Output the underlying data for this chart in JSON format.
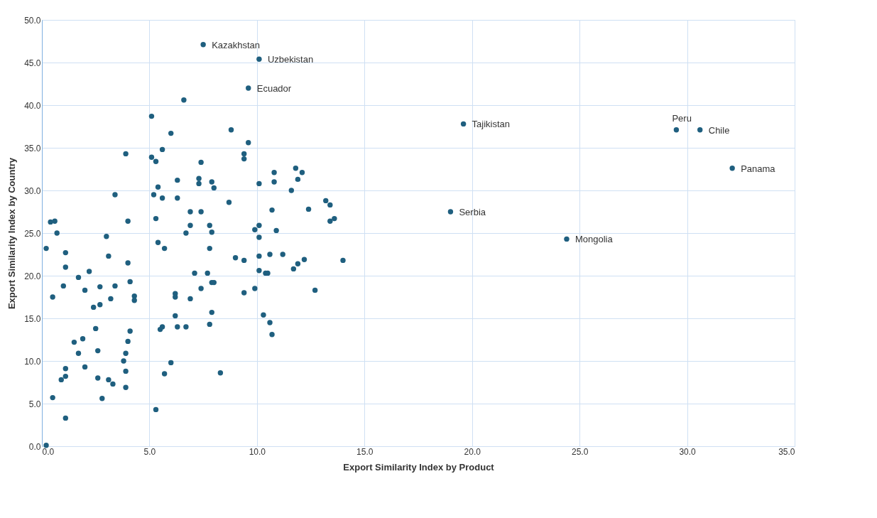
{
  "chart_data": {
    "type": "scatter",
    "xlabel": "Export Similarity Index by Product",
    "ylabel": "Export Similarity Index by Country",
    "xlim": [
      0,
      35
    ],
    "ylim": [
      0,
      50
    ],
    "xticks": [
      {
        "value": 0,
        "label": "0.0"
      },
      {
        "value": 5,
        "label": "5.0"
      },
      {
        "value": 10,
        "label": "10.0"
      },
      {
        "value": 15,
        "label": "15.0"
      },
      {
        "value": 20,
        "label": "20.0"
      },
      {
        "value": 25,
        "label": "25.0"
      },
      {
        "value": 30,
        "label": "30.0"
      },
      {
        "value": 35,
        "label": "35.0"
      }
    ],
    "yticks": [
      {
        "value": 0,
        "label": "0.0"
      },
      {
        "value": 5,
        "label": "5.0"
      },
      {
        "value": 10,
        "label": "10.0"
      },
      {
        "value": 15,
        "label": "15.0"
      },
      {
        "value": 20,
        "label": "20.0"
      },
      {
        "value": 25,
        "label": "25.0"
      },
      {
        "value": 30,
        "label": "30.0"
      },
      {
        "value": 35,
        "label": "35.0"
      },
      {
        "value": 40,
        "label": "40.0"
      },
      {
        "value": 45,
        "label": "45.0"
      },
      {
        "value": 50,
        "label": "50.0"
      }
    ],
    "grid": true,
    "marker": "circle",
    "series": [
      {
        "color": "#1f5f7f",
        "x": [
          7.5,
          10.1,
          9.6,
          19.6,
          29.5,
          30.6,
          32.1,
          19.0,
          24.4,
          5.1,
          6.6,
          6.0,
          8.8,
          9.6,
          5.6,
          3.9,
          5.1,
          5.3,
          7.4,
          9.4,
          9.4,
          11.8,
          10.8,
          12.1,
          6.3,
          7.3,
          7.3,
          7.9,
          8.0,
          5.4,
          10.1,
          10.8,
          11.9,
          11.6,
          3.4,
          5.2,
          5.6,
          6.3,
          8.7,
          6.9,
          7.4,
          10.7,
          12.4,
          13.2,
          13.4,
          13.4,
          13.6,
          5.3,
          4.0,
          0.4,
          0.6,
          0.7,
          6.9,
          7.8,
          7.9,
          6.7,
          10.1,
          9.9,
          10.9,
          10.1,
          3.0,
          5.4,
          0.2,
          5.7,
          7.8,
          1.1,
          3.1,
          9.0,
          9.4,
          10.1,
          10.6,
          11.2,
          12.2,
          14.0,
          4.0,
          11.9,
          11.7,
          1.1,
          2.2,
          10.1,
          10.4,
          10.5,
          7.1,
          7.7,
          1.7,
          4.1,
          7.9,
          8.0,
          1.0,
          3.4,
          2.7,
          7.4,
          9.9,
          12.7,
          2.0,
          6.2,
          4.3,
          6.2,
          9.4,
          0.5,
          6.9,
          3.2,
          4.3,
          2.7,
          2.4,
          7.9,
          6.2,
          10.3,
          10.6,
          7.8,
          5.6,
          5.5,
          6.3,
          6.7,
          4.1,
          2.5,
          10.7,
          1.9,
          4.0,
          1.5,
          2.6,
          1.7,
          3.9,
          3.8,
          6.0,
          1.1,
          2.0,
          3.9,
          8.3,
          5.7,
          1.1,
          0.9,
          2.6,
          3.1,
          3.3,
          3.9,
          0.5,
          2.8,
          5.3,
          1.1,
          0.2
        ],
        "values": [
          47.1,
          45.4,
          42.0,
          37.8,
          37.1,
          37.1,
          32.6,
          27.5,
          24.3,
          38.7,
          40.6,
          36.7,
          37.1,
          35.6,
          34.8,
          34.3,
          33.9,
          33.4,
          33.3,
          34.3,
          33.7,
          32.6,
          32.1,
          32.1,
          31.2,
          31.4,
          30.8,
          31.0,
          30.3,
          30.4,
          30.8,
          31.0,
          31.3,
          30.0,
          29.5,
          29.5,
          29.1,
          29.1,
          28.6,
          27.5,
          27.5,
          27.7,
          27.8,
          28.8,
          28.3,
          26.4,
          26.7,
          26.7,
          26.4,
          26.3,
          26.4,
          25.0,
          25.9,
          25.9,
          25.1,
          25.0,
          25.9,
          25.4,
          25.3,
          24.5,
          24.6,
          23.9,
          23.2,
          23.2,
          23.2,
          22.7,
          22.3,
          22.1,
          21.8,
          22.3,
          22.5,
          22.5,
          21.9,
          21.8,
          21.5,
          21.4,
          20.8,
          21.0,
          20.5,
          20.6,
          20.3,
          20.3,
          20.3,
          20.3,
          19.8,
          19.3,
          19.2,
          19.2,
          18.8,
          18.8,
          18.7,
          18.5,
          18.5,
          18.3,
          18.3,
          17.9,
          17.6,
          17.5,
          18.0,
          17.5,
          17.3,
          17.3,
          17.1,
          16.6,
          16.3,
          15.7,
          15.3,
          15.4,
          14.5,
          14.3,
          14.0,
          13.7,
          14.0,
          14.0,
          13.5,
          13.8,
          13.1,
          12.6,
          12.3,
          12.2,
          11.2,
          10.9,
          10.9,
          10.0,
          9.8,
          9.1,
          9.3,
          8.8,
          8.6,
          8.5,
          8.2,
          7.8,
          8.0,
          7.8,
          7.3,
          6.9,
          5.7,
          5.6,
          4.3,
          3.3,
          0.1
        ]
      }
    ],
    "annotations": [
      {
        "text": "Kazakhstan",
        "x": 7.5,
        "y": 47.1
      },
      {
        "text": "Uzbekistan",
        "x": 10.1,
        "y": 45.4
      },
      {
        "text": "Ecuador",
        "x": 9.6,
        "y": 42.0
      },
      {
        "text": "Tajikistan",
        "x": 19.6,
        "y": 37.8
      },
      {
        "text": "Peru",
        "x": 29.5,
        "y": 37.1
      },
      {
        "text": "Chile",
        "x": 30.6,
        "y": 37.1
      },
      {
        "text": "Panama",
        "x": 32.1,
        "y": 32.6
      },
      {
        "text": "Serbia",
        "x": 19.0,
        "y": 27.5
      },
      {
        "text": "Mongolia",
        "x": 24.4,
        "y": 24.3
      }
    ]
  }
}
